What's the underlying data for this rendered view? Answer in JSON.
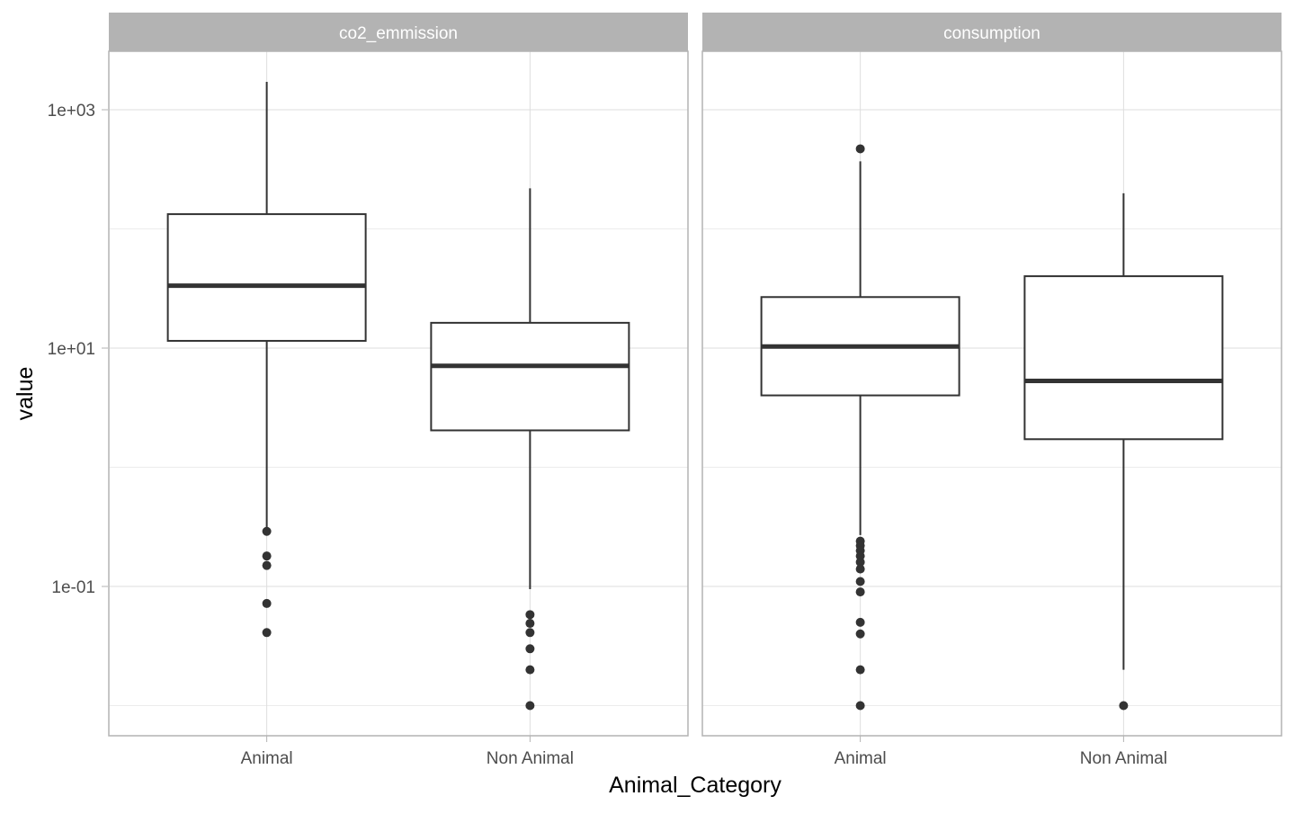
{
  "chart_data": {
    "type": "boxplot",
    "xlabel": "Animal_Category",
    "ylabel": "value",
    "y_scale": "log10",
    "y_ticks": [
      {
        "value": 1000,
        "label": "1e+03"
      },
      {
        "value": 10,
        "label": "1e+01"
      },
      {
        "value": 0.1,
        "label": "1e-01"
      }
    ],
    "y_minor_gridlines": [
      100,
      1,
      0.01
    ],
    "ylim": [
      0.0055,
      3200
    ],
    "grid": true,
    "categories": [
      "Animal",
      "Non Animal"
    ],
    "panels": [
      {
        "strip_label": "co2_emmission",
        "boxes": [
          {
            "category": "Animal",
            "whisker_low": 0.29,
            "q1": 11.5,
            "median": 33.4,
            "q3": 133,
            "whisker_high": 1712,
            "outliers": [
              0.29,
              0.18,
              0.15,
              0.072,
              0.041
            ]
          },
          {
            "category": "Non Animal",
            "whisker_low": 0.095,
            "q1": 2.04,
            "median": 7.1,
            "q3": 16.3,
            "whisker_high": 219,
            "outliers": [
              0.058,
              0.049,
              0.041,
              0.03,
              0.02,
              0.01
            ]
          }
        ]
      },
      {
        "strip_label": "consumption",
        "boxes": [
          {
            "category": "Animal",
            "whisker_low": 0.27,
            "q1": 4.01,
            "median": 10.3,
            "q3": 26.8,
            "whisker_high": 369,
            "outliers": [
              470,
              0.24,
              0.22,
              0.2,
              0.18,
              0.16,
              0.14,
              0.11,
              0.09,
              0.05,
              0.04,
              0.02,
              0.01
            ]
          },
          {
            "category": "Non Animal",
            "whisker_low": 0.02,
            "q1": 1.72,
            "median": 5.3,
            "q3": 40.1,
            "whisker_high": 199,
            "outliers": [
              0.01
            ]
          }
        ]
      }
    ]
  }
}
